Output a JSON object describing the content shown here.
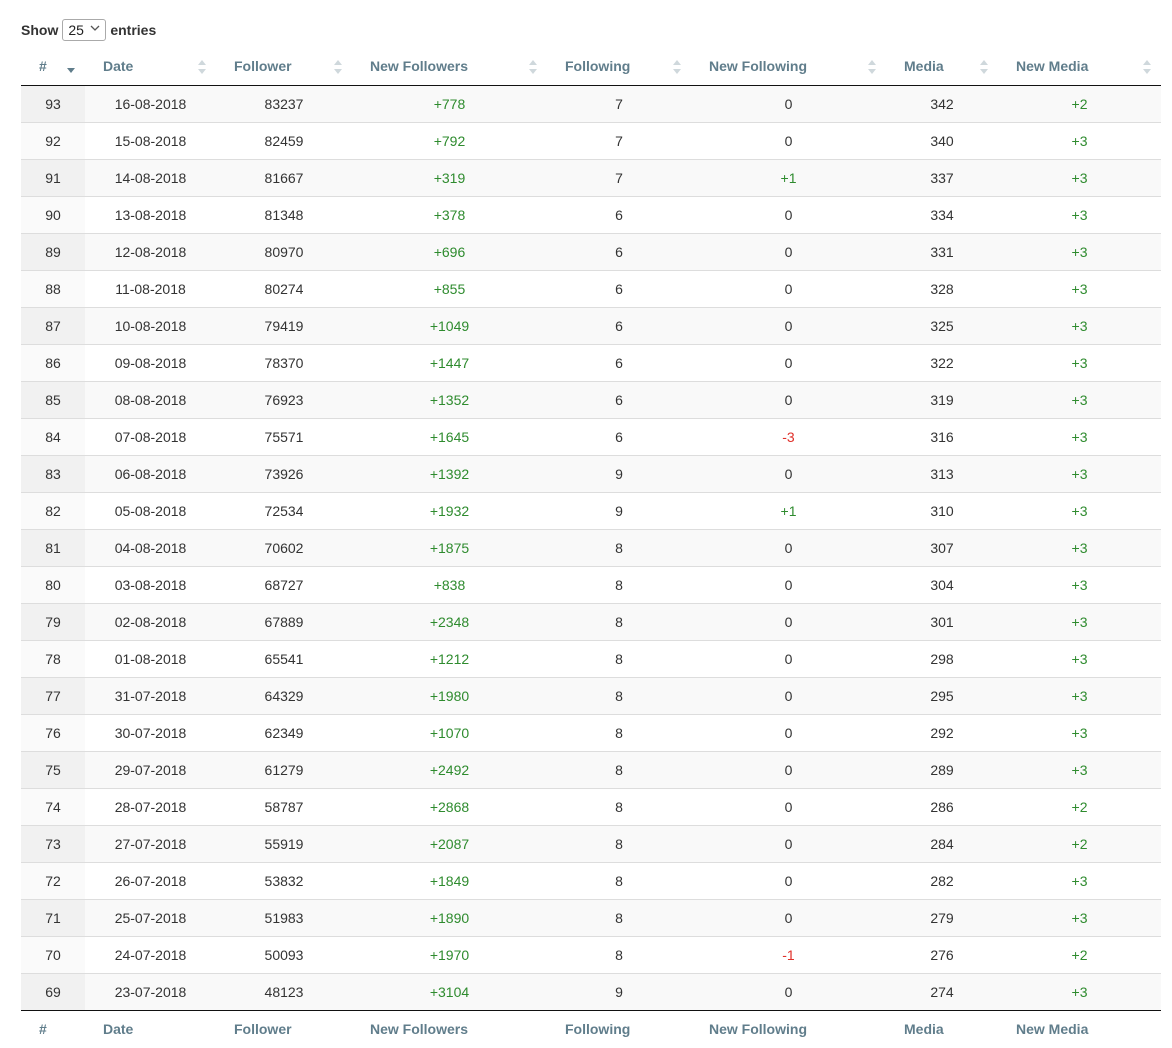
{
  "length_menu": {
    "show_label": "Show",
    "selected": "25",
    "entries_label": "entries"
  },
  "colors": {
    "header_text": "#607d8b",
    "positive": "#2e8b2e",
    "negative": "#e0302a",
    "sort_active": "#607d8b",
    "sort_inactive": "#cfd8dc"
  },
  "columns": [
    "#",
    "Date",
    "Follower",
    "New Followers",
    "Following",
    "New Following",
    "Media",
    "New Media"
  ],
  "rows": [
    [
      "93",
      "16-08-2018",
      "83237",
      "+778",
      "7",
      "0",
      "342",
      "+2"
    ],
    [
      "92",
      "15-08-2018",
      "82459",
      "+792",
      "7",
      "0",
      "340",
      "+3"
    ],
    [
      "91",
      "14-08-2018",
      "81667",
      "+319",
      "7",
      "+1",
      "337",
      "+3"
    ],
    [
      "90",
      "13-08-2018",
      "81348",
      "+378",
      "6",
      "0",
      "334",
      "+3"
    ],
    [
      "89",
      "12-08-2018",
      "80970",
      "+696",
      "6",
      "0",
      "331",
      "+3"
    ],
    [
      "88",
      "11-08-2018",
      "80274",
      "+855",
      "6",
      "0",
      "328",
      "+3"
    ],
    [
      "87",
      "10-08-2018",
      "79419",
      "+1049",
      "6",
      "0",
      "325",
      "+3"
    ],
    [
      "86",
      "09-08-2018",
      "78370",
      "+1447",
      "6",
      "0",
      "322",
      "+3"
    ],
    [
      "85",
      "08-08-2018",
      "76923",
      "+1352",
      "6",
      "0",
      "319",
      "+3"
    ],
    [
      "84",
      "07-08-2018",
      "75571",
      "+1645",
      "6",
      "-3",
      "316",
      "+3"
    ],
    [
      "83",
      "06-08-2018",
      "73926",
      "+1392",
      "9",
      "0",
      "313",
      "+3"
    ],
    [
      "82",
      "05-08-2018",
      "72534",
      "+1932",
      "9",
      "+1",
      "310",
      "+3"
    ],
    [
      "81",
      "04-08-2018",
      "70602",
      "+1875",
      "8",
      "0",
      "307",
      "+3"
    ],
    [
      "80",
      "03-08-2018",
      "68727",
      "+838",
      "8",
      "0",
      "304",
      "+3"
    ],
    [
      "79",
      "02-08-2018",
      "67889",
      "+2348",
      "8",
      "0",
      "301",
      "+3"
    ],
    [
      "78",
      "01-08-2018",
      "65541",
      "+1212",
      "8",
      "0",
      "298",
      "+3"
    ],
    [
      "77",
      "31-07-2018",
      "64329",
      "+1980",
      "8",
      "0",
      "295",
      "+3"
    ],
    [
      "76",
      "30-07-2018",
      "62349",
      "+1070",
      "8",
      "0",
      "292",
      "+3"
    ],
    [
      "75",
      "29-07-2018",
      "61279",
      "+2492",
      "8",
      "0",
      "289",
      "+3"
    ],
    [
      "74",
      "28-07-2018",
      "58787",
      "+2868",
      "8",
      "0",
      "286",
      "+2"
    ],
    [
      "73",
      "27-07-2018",
      "55919",
      "+2087",
      "8",
      "0",
      "284",
      "+2"
    ],
    [
      "72",
      "26-07-2018",
      "53832",
      "+1849",
      "8",
      "0",
      "282",
      "+3"
    ],
    [
      "71",
      "25-07-2018",
      "51983",
      "+1890",
      "8",
      "0",
      "279",
      "+3"
    ],
    [
      "70",
      "24-07-2018",
      "50093",
      "+1970",
      "8",
      "-1",
      "276",
      "+2"
    ],
    [
      "69",
      "23-07-2018",
      "48123",
      "+3104",
      "9",
      "0",
      "274",
      "+3"
    ]
  ]
}
